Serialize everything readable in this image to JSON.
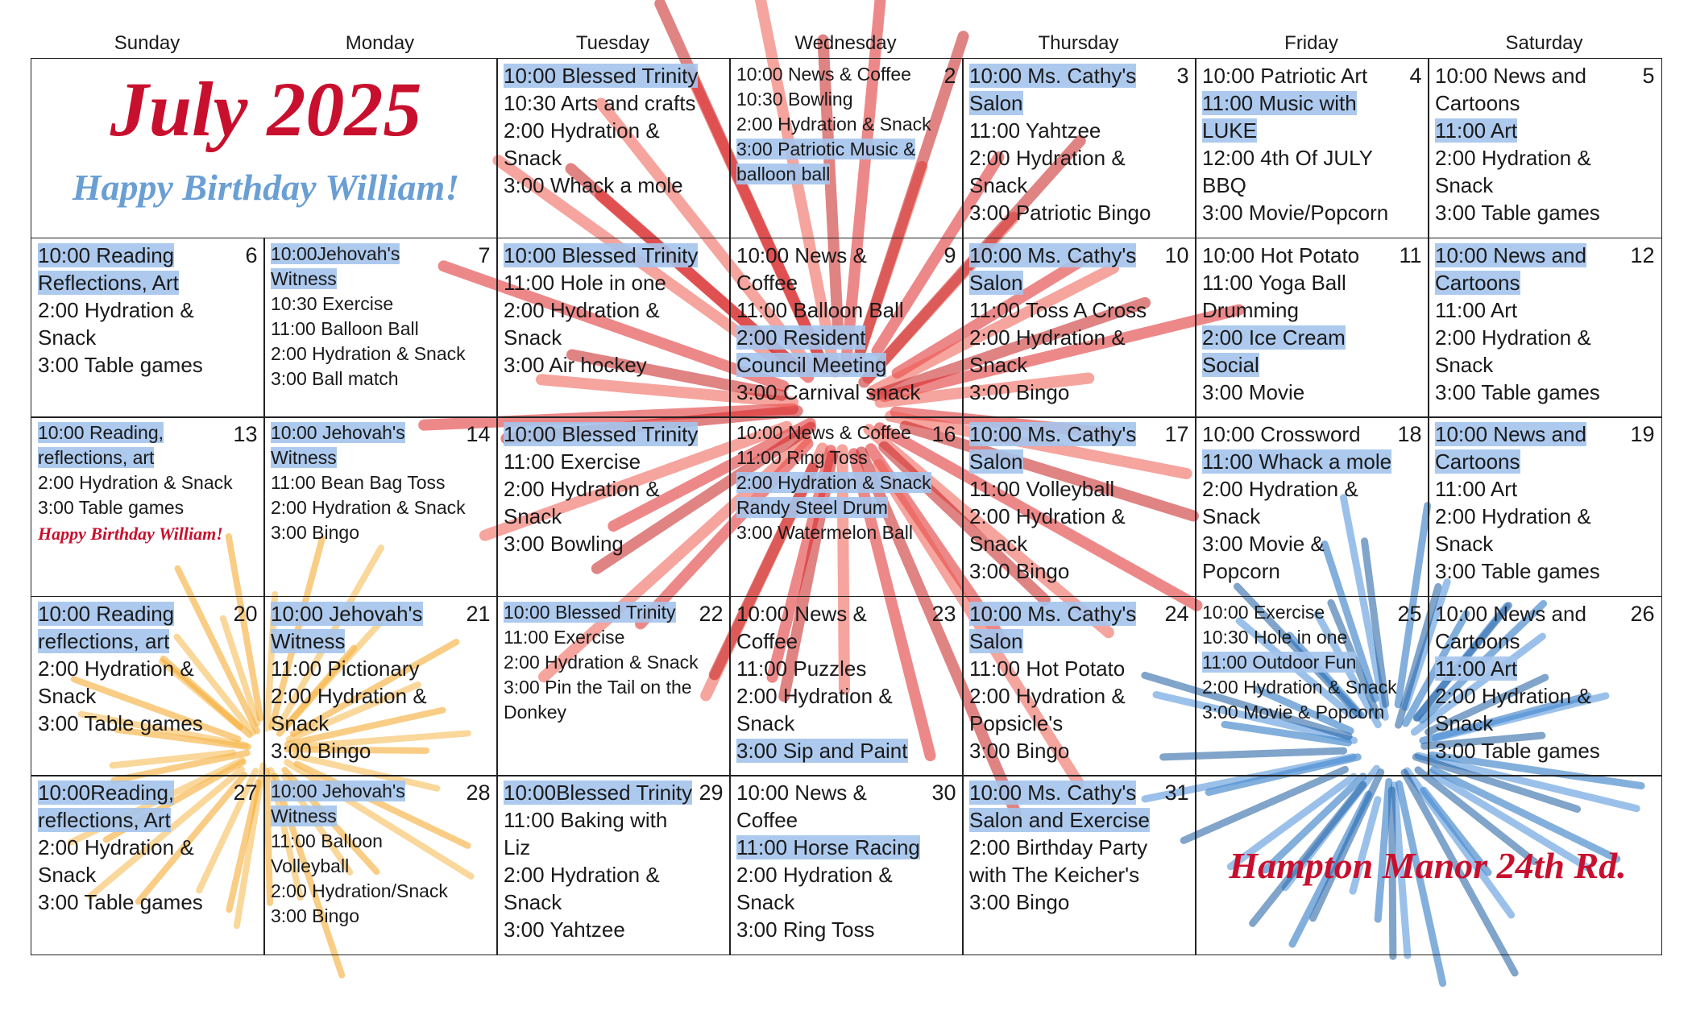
{
  "title": "July 2025",
  "subtitle": "Happy Birthday William!",
  "footer": "Hampton Manor 24th Rd.",
  "weekdays": [
    "Sunday",
    "Monday",
    "Tuesday",
    "Wednesday",
    "Thursday",
    "Friday",
    "Saturday"
  ],
  "weeks": [
    [
      null,
      null,
      {
        "events": [
          {
            "text": "10:00 Blessed Trinity",
            "highlight": true
          },
          {
            "text": "10:30 Arts and crafts",
            "highlight": false
          },
          {
            "text": "2:00 Hydration & Snack",
            "highlight": false
          },
          {
            "text": "3:00 Whack a mole",
            "highlight": false
          }
        ]
      },
      {
        "day": 2,
        "compact": true,
        "events": [
          {
            "text": "10:00 News & Coffee",
            "highlight": false
          },
          {
            "text": "10:30 Bowling",
            "highlight": false
          },
          {
            "text": "2:00 Hydration & Snack",
            "highlight": false
          },
          {
            "text": "3:00 Patriotic Music & balloon ball",
            "highlight": true
          }
        ]
      },
      {
        "day": 3,
        "events": [
          {
            "text": "10:00 Ms. Cathy's Salon",
            "highlight": true
          },
          {
            "text": "11:00 Yahtzee",
            "highlight": false
          },
          {
            "text": "2:00 Hydration & Snack",
            "highlight": false
          },
          {
            "text": "3:00 Patriotic Bingo",
            "highlight": false
          }
        ]
      },
      {
        "day": 4,
        "events": [
          {
            "text": "10:00 Patriotic Art",
            "highlight": false
          },
          {
            "text": "11:00 Music with LUKE",
            "highlight": true
          },
          {
            "text": "12:00 4th Of JULY BBQ",
            "highlight": false
          },
          {
            "text": "3:00 Movie/Popcorn",
            "highlight": false
          }
        ]
      },
      {
        "day": 5,
        "events": [
          {
            "text": "10:00 News and Cartoons",
            "highlight": false
          },
          {
            "text": "11:00 Art",
            "highlight": true
          },
          {
            "text": "2:00 Hydration & Snack",
            "highlight": false
          },
          {
            "text": "3:00 Table games",
            "highlight": false
          }
        ]
      }
    ],
    [
      {
        "day": 6,
        "events": [
          {
            "text": "10:00 Reading Reflections, Art",
            "highlight": true
          },
          {
            "text": "2:00 Hydration & Snack",
            "highlight": false
          },
          {
            "text": "3:00 Table games",
            "highlight": false
          }
        ]
      },
      {
        "day": 7,
        "compact": true,
        "events": [
          {
            "text": "10:00Jehovah's Witness",
            "highlight": true
          },
          {
            "text": "10:30 Exercise",
            "highlight": false
          },
          {
            "text": "11:00 Balloon Ball",
            "highlight": false
          },
          {
            "text": "2:00 Hydration & Snack",
            "highlight": false
          },
          {
            "text": "3:00 Ball match",
            "highlight": false
          }
        ]
      },
      {
        "events": [
          {
            "text": "10:00 Blessed Trinity",
            "highlight": true
          },
          {
            "text": "11:00 Hole in one",
            "highlight": false
          },
          {
            "text": "2:00 Hydration & Snack",
            "highlight": false
          },
          {
            "text": "3:00 Air hockey",
            "highlight": false
          }
        ]
      },
      {
        "day": 9,
        "events": [
          {
            "text": "10:00 News & Coffee",
            "highlight": false
          },
          {
            "text": "11:00 Balloon Ball",
            "highlight": false
          },
          {
            "text": "2:00 Resident Council Meeting",
            "highlight": true
          },
          {
            "text": "3:00 Carnival snack",
            "highlight": false
          }
        ]
      },
      {
        "day": 10,
        "events": [
          {
            "text": "10:00 Ms. Cathy's Salon",
            "highlight": true
          },
          {
            "text": "11:00 Toss A Cross",
            "highlight": false
          },
          {
            "text": "2:00 Hydration & Snack",
            "highlight": false
          },
          {
            "text": "3:00 Bingo",
            "highlight": false
          }
        ]
      },
      {
        "day": 11,
        "events": [
          {
            "text": "10:00 Hot Potato",
            "highlight": false
          },
          {
            "text": "11:00 Yoga Ball Drumming",
            "highlight": false
          },
          {
            "text": "2:00 Ice Cream Social",
            "highlight": true
          },
          {
            "text": "3:00 Movie",
            "highlight": false
          }
        ]
      },
      {
        "day": 12,
        "events": [
          {
            "text": "10:00 News and Cartoons",
            "highlight": true
          },
          {
            "text": "11:00 Art",
            "highlight": false
          },
          {
            "text": "2:00 Hydration & Snack",
            "highlight": false
          },
          {
            "text": "3:00 Table games",
            "highlight": false
          }
        ]
      }
    ],
    [
      {
        "day": 13,
        "compact": true,
        "note": "Happy Birthday William!",
        "events": [
          {
            "text": "10:00 Reading, reflections, art",
            "highlight": true
          },
          {
            "text": "2:00 Hydration & Snack",
            "highlight": false
          },
          {
            "text": "3:00 Table games",
            "highlight": false
          }
        ]
      },
      {
        "day": 14,
        "compact": true,
        "events": [
          {
            "text": "10:00 Jehovah's Witness",
            "highlight": true
          },
          {
            "text": "11:00 Bean Bag Toss",
            "highlight": false
          },
          {
            "text": "2:00 Hydration & Snack",
            "highlight": false
          },
          {
            "text": "3:00 Bingo",
            "highlight": false
          }
        ]
      },
      {
        "events": [
          {
            "text": "10:00 Blessed Trinity",
            "highlight": true
          },
          {
            "text": "11:00 Exercise",
            "highlight": false
          },
          {
            "text": "2:00 Hydration & Snack",
            "highlight": false
          },
          {
            "text": "3:00 Bowling",
            "highlight": false
          }
        ]
      },
      {
        "day": 16,
        "compact": true,
        "events": [
          {
            "text": "10:00 News & Coffee",
            "highlight": false
          },
          {
            "text": "11:00 Ring Toss",
            "highlight": false
          },
          {
            "text": "2:00 Hydration & Snack",
            "highlight": true
          },
          {
            "text": "Randy Steel Drum",
            "highlight": true
          },
          {
            "text": "3:00 Watermelon Ball",
            "highlight": false
          }
        ]
      },
      {
        "day": 17,
        "events": [
          {
            "text": "10:00 Ms. Cathy's Salon",
            "highlight": true
          },
          {
            "text": "11:00 Volleyball",
            "highlight": false
          },
          {
            "text": "2:00 Hydration & Snack",
            "highlight": false
          },
          {
            "text": "3:00 Bingo",
            "highlight": false
          }
        ]
      },
      {
        "day": 18,
        "events": [
          {
            "text": "10:00 Crossword",
            "highlight": false
          },
          {
            "text": "11:00 Whack a mole",
            "highlight": true
          },
          {
            "text": "2:00 Hydration & Snack",
            "highlight": false
          },
          {
            "text": "3:00 Movie & Popcorn",
            "highlight": false
          }
        ]
      },
      {
        "day": 19,
        "events": [
          {
            "text": "10:00 News and Cartoons",
            "highlight": true
          },
          {
            "text": "11:00 Art",
            "highlight": false
          },
          {
            "text": "2:00 Hydration & Snack",
            "highlight": false
          },
          {
            "text": "3:00 Table games",
            "highlight": false
          }
        ]
      }
    ],
    [
      {
        "day": 20,
        "events": [
          {
            "text": "10:00 Reading reflections, art",
            "highlight": true
          },
          {
            "text": "2:00 Hydration & Snack",
            "highlight": false
          },
          {
            "text": "3:00 Table games",
            "highlight": false
          }
        ]
      },
      {
        "day": 21,
        "events": [
          {
            "text": "10:00 Jehovah's Witness",
            "highlight": true
          },
          {
            "text": "11:00 Pictionary",
            "highlight": false
          },
          {
            "text": "2:00 Hydration & Snack",
            "highlight": false
          },
          {
            "text": "3:00 Bingo",
            "highlight": false
          }
        ]
      },
      {
        "day": 22,
        "compact": true,
        "events": [
          {
            "text": "10:00 Blessed Trinity",
            "highlight": true
          },
          {
            "text": "11:00 Exercise",
            "highlight": false
          },
          {
            "text": "2:00 Hydration & Snack",
            "highlight": false
          },
          {
            "text": "3:00 Pin the Tail on the Donkey",
            "highlight": false
          }
        ]
      },
      {
        "day": 23,
        "events": [
          {
            "text": "10:00 News & Coffee",
            "highlight": false
          },
          {
            "text": "11:00 Puzzles",
            "highlight": false
          },
          {
            "text": "2:00 Hydration & Snack",
            "highlight": false
          },
          {
            "text": "3:00 Sip and Paint",
            "highlight": true
          }
        ]
      },
      {
        "day": 24,
        "events": [
          {
            "text": "10:00 Ms. Cathy's Salon",
            "highlight": true
          },
          {
            "text": "11:00 Hot Potato",
            "highlight": false
          },
          {
            "text": "2:00 Hydration & Popsicle's",
            "highlight": false
          },
          {
            "text": "3:00 Bingo",
            "highlight": false
          }
        ]
      },
      {
        "day": 25,
        "compact": true,
        "events": [
          {
            "text": "10:00 Exercise",
            "highlight": false
          },
          {
            "text": "10:30 Hole in one",
            "highlight": false
          },
          {
            "text": "11:00 Outdoor Fun",
            "highlight": true
          },
          {
            "text": "2:00 Hydration & Snack",
            "highlight": false
          },
          {
            "text": "3:00 Movie & Popcorn",
            "highlight": false
          }
        ]
      },
      {
        "day": 26,
        "events": [
          {
            "text": "10:00 News and Cartoons",
            "highlight": false
          },
          {
            "text": "11:00 Art",
            "highlight": true
          },
          {
            "text": "2:00 Hydration & Snack",
            "highlight": false
          },
          {
            "text": "3:00 Table games",
            "highlight": false
          }
        ]
      }
    ],
    [
      {
        "day": 27,
        "events": [
          {
            "text": "10:00Reading, reflections, Art",
            "highlight": true
          },
          {
            "text": "2:00 Hydration & Snack",
            "highlight": false
          },
          {
            "text": "3:00 Table games",
            "highlight": false
          }
        ]
      },
      {
        "day": 28,
        "compact": true,
        "events": [
          {
            "text": "10:00 Jehovah's Witness",
            "highlight": true
          },
          {
            "text": "11:00 Balloon Volleyball",
            "highlight": false
          },
          {
            "text": "2:00 Hydration/Snack",
            "highlight": false
          },
          {
            "text": "3:00 Bingo",
            "highlight": false
          }
        ]
      },
      {
        "day": 29,
        "events": [
          {
            "text": "10:00Blessed Trinity",
            "highlight": true
          },
          {
            "text": "11:00 Baking with Liz",
            "highlight": false
          },
          {
            "text": "2:00 Hydration & Snack",
            "highlight": false
          },
          {
            "text": "3:00 Yahtzee",
            "highlight": false
          }
        ]
      },
      {
        "day": 30,
        "events": [
          {
            "text": "10:00 News & Coffee",
            "highlight": false
          },
          {
            "text": "11:00 Horse Racing",
            "highlight": true
          },
          {
            "text": "2:00 Hydration & Snack",
            "highlight": false
          },
          {
            "text": "3:00 Ring Toss",
            "highlight": false
          }
        ]
      },
      {
        "day": 31,
        "events": [
          {
            "text": "10:00 Ms. Cathy's Salon and Exercise",
            "highlight": true
          },
          {
            "text": "2:00 Birthday Party with The Keicher's",
            "highlight": false
          },
          {
            "text": "3:00 Bingo",
            "highlight": false
          }
        ]
      },
      null,
      null
    ]
  ]
}
